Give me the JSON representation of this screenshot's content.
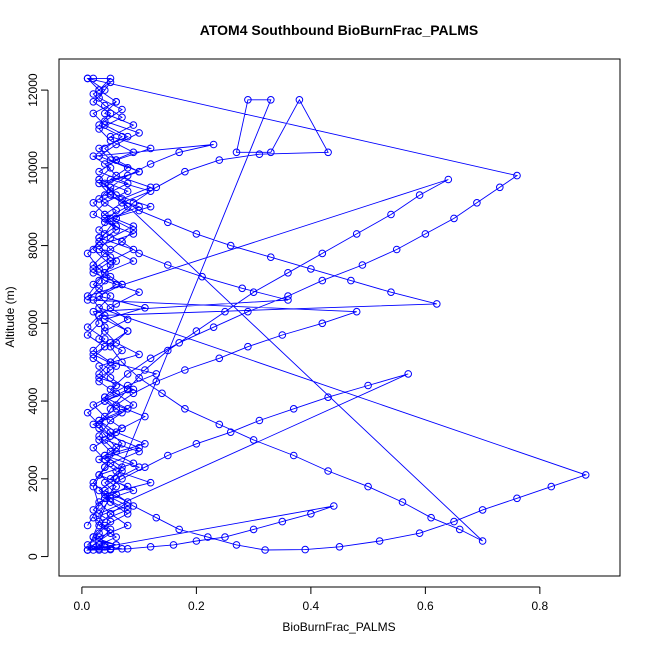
{
  "chart_data": {
    "type": "line",
    "title": "ATOM4 Southbound BioBurnFrac_PALMS",
    "xlabel": "BioBurnFrac_PALMS",
    "ylabel": "Altitude (m)",
    "xlim": [
      -0.04,
      0.94
    ],
    "ylim": [
      -500,
      12800
    ],
    "x_ticks": [
      0.0,
      0.2,
      0.4,
      0.6,
      0.8
    ],
    "x_tick_labels": [
      "0.0",
      "0.2",
      "0.4",
      "0.6",
      "0.8"
    ],
    "y_ticks": [
      0,
      2000,
      4000,
      6000,
      8000,
      10000,
      12000
    ],
    "y_tick_labels": [
      "0",
      "2000",
      "4000",
      "6000",
      "8000",
      "10000",
      "12000"
    ],
    "grid": false,
    "marker": "open-circle",
    "line_style": "solid",
    "series": [
      {
        "color": "#0000ff",
        "x": [
          0.01,
          0.03,
          0.05,
          0.02,
          0.08,
          0.04,
          0.12,
          0.06,
          0.03,
          0.1,
          0.05,
          0.02,
          0.07,
          0.04,
          0.09,
          0.03,
          0.06,
          0.02,
          0.05,
          0.08,
          0.04,
          0.11,
          0.03,
          0.07,
          0.02,
          0.05,
          0.09,
          0.03,
          0.06,
          0.02,
          0.04,
          0.08,
          0.03,
          0.05,
          0.02,
          0.23,
          0.17,
          0.12,
          0.08,
          0.05,
          0.03,
          0.06,
          0.04,
          0.09,
          0.03,
          0.05,
          0.02,
          0.04,
          0.1,
          0.06,
          0.03,
          0.04,
          0.03,
          0.07,
          0.05,
          0.13,
          0.08,
          0.04,
          0.06,
          0.03,
          0.05,
          0.07,
          0.04,
          0.1,
          0.06,
          0.03,
          0.05,
          0.08,
          0.04,
          0.02,
          0.06,
          0.03,
          0.01,
          0.02,
          0.05,
          0.03,
          0.08,
          0.04,
          0.06,
          0.03,
          0.09,
          0.05,
          0.03,
          0.07,
          0.04,
          0.02,
          0.06,
          0.03,
          0.05,
          0.02,
          0.04,
          0.01,
          0.03,
          0.02,
          0.36,
          0.28,
          0.21,
          0.15,
          0.1,
          0.07,
          0.09,
          0.05,
          0.12,
          0.06,
          0.04,
          0.1,
          0.05,
          0.03,
          0.08,
          0.04,
          0.02,
          0.06,
          0.03,
          0.05,
          0.02,
          0.01,
          0.03,
          0.06,
          0.04,
          0.09,
          0.05,
          0.12,
          0.06,
          0.03,
          0.08,
          0.04,
          0.1,
          0.05,
          0.03,
          0.07,
          0.04,
          0.02,
          0.05,
          0.03,
          0.01,
          0.48,
          0.42,
          0.35,
          0.29,
          0.24,
          0.18,
          0.13,
          0.09,
          0.06,
          0.11,
          0.07,
          0.04,
          0.1,
          0.05,
          0.03,
          0.08,
          0.04,
          0.02,
          0.05,
          0.03,
          0.01,
          0.05,
          0.03,
          0.08,
          0.05,
          0.03,
          0.09,
          0.05,
          0.07,
          0.04,
          0.11,
          0.06,
          0.03,
          0.08,
          0.04,
          0.06,
          0.03,
          0.05,
          0.02,
          0.04,
          0.01,
          0.03,
          0.62,
          0.54,
          0.47,
          0.4,
          0.33,
          0.26,
          0.2,
          0.15,
          0.1,
          0.07,
          0.12,
          0.06,
          0.04,
          0.09,
          0.05,
          0.03,
          0.07,
          0.04,
          0.02,
          0.05,
          0.03,
          0.07,
          0.04,
          0.1,
          0.06,
          0.03,
          0.08,
          0.05,
          0.12,
          0.07,
          0.04,
          0.09,
          0.05,
          0.03,
          0.06,
          0.04,
          0.02,
          0.05,
          0.03,
          0.88,
          0.82,
          0.76,
          0.7,
          0.65,
          0.59,
          0.52,
          0.45,
          0.39,
          0.32,
          0.27,
          0.22,
          0.17,
          0.13,
          0.09,
          0.06,
          0.04,
          0.07,
          0.04,
          0.02,
          0.05,
          0.03,
          0.01,
          0.04,
          0.08,
          0.05,
          0.03,
          0.1,
          0.06,
          0.04,
          0.08,
          0.05,
          0.03,
          0.07,
          0.04,
          0.09,
          0.05,
          0.03,
          0.06,
          0.04,
          0.02,
          0.05,
          0.03,
          0.7,
          0.66,
          0.61,
          0.56,
          0.5,
          0.43,
          0.37,
          0.3,
          0.24,
          0.18,
          0.14,
          0.1,
          0.07,
          0.05,
          0.08,
          0.04,
          0.02,
          0.06,
          0.03,
          0.01,
          0.03,
          0.06,
          0.04,
          0.08,
          0.05,
          0.03,
          0.1,
          0.06,
          0.04,
          0.07,
          0.03,
          0.05,
          0.02,
          0.04,
          0.01,
          0.76,
          0.73,
          0.69,
          0.65,
          0.6,
          0.55,
          0.49,
          0.42,
          0.36,
          0.29,
          0.23,
          0.17,
          0.12,
          0.08,
          0.05,
          0.09,
          0.05,
          0.03,
          0.06,
          0.04,
          0.02,
          0.05,
          0.03,
          0.57,
          0.5,
          0.43,
          0.37,
          0.31,
          0.26,
          0.2,
          0.15,
          0.11,
          0.07,
          0.04,
          0.08,
          0.05,
          0.03,
          0.06,
          0.03,
          0.05,
          0.02,
          0.04,
          0.01,
          0.44,
          0.4,
          0.35,
          0.3,
          0.25,
          0.2,
          0.16,
          0.12,
          0.08,
          0.05,
          0.03,
          0.07,
          0.04,
          0.06,
          0.03,
          0.02,
          0.04,
          0.01,
          0.33,
          0.29,
          0.27,
          0.33,
          0.38,
          0.43,
          0.31,
          0.24,
          0.18,
          0.13,
          0.09,
          0.06,
          0.04,
          0.02,
          0.05,
          0.03,
          0.01,
          0.64,
          0.59,
          0.54,
          0.48,
          0.42,
          0.36,
          0.3,
          0.25,
          0.2,
          0.15,
          0.11,
          0.08,
          0.05,
          0.03,
          0.06,
          0.04,
          0.02,
          0.03,
          0.01
        ],
        "y": [
          170,
          400,
          700,
          1000,
          1300,
          1600,
          1900,
          2200,
          2500,
          2800,
          3100,
          3400,
          3700,
          4000,
          4300,
          4600,
          4900,
          5200,
          5500,
          5800,
          6100,
          6400,
          6700,
          7000,
          7300,
          7600,
          7900,
          8200,
          8500,
          8800,
          9100,
          9400,
          9700,
          10000,
          10300,
          10600,
          10400,
          10100,
          9800,
          9500,
          9200,
          8900,
          8600,
          8300,
          8000,
          7700,
          7400,
          7100,
          6800,
          6500,
          6200,
          5900,
          5600,
          5300,
          5000,
          4700,
          4400,
          4100,
          3800,
          3500,
          3200,
          2900,
          2600,
          2300,
          2000,
          1700,
          1400,
          1100,
          800,
          500,
          300,
          200,
          170,
          300,
          600,
          900,
          1200,
          1500,
          1800,
          2100,
          2400,
          2700,
          3000,
          3300,
          3600,
          3900,
          4200,
          4500,
          4800,
          5100,
          5400,
          5700,
          6000,
          6300,
          6600,
          6900,
          7200,
          7500,
          7800,
          8100,
          8400,
          8700,
          9000,
          9300,
          9600,
          9900,
          10200,
          10500,
          10800,
          11100,
          11400,
          11700,
          12000,
          12300,
          12300,
          12300,
          12000,
          11700,
          11400,
          11100,
          10800,
          10500,
          10200,
          9900,
          9600,
          9300,
          9000,
          8700,
          8400,
          8100,
          7800,
          7500,
          7200,
          6900,
          6600,
          6300,
          6000,
          5700,
          5400,
          5100,
          4800,
          4500,
          4200,
          3900,
          3600,
          3300,
          3000,
          2700,
          2400,
          2100,
          1800,
          1500,
          1200,
          900,
          600,
          300,
          200,
          500,
          800,
          1100,
          1400,
          1700,
          2000,
          2300,
          2600,
          2900,
          3200,
          3500,
          3800,
          4100,
          4400,
          4700,
          5000,
          5300,
          5600,
          5900,
          6200,
          6500,
          6800,
          7100,
          7400,
          7700,
          8000,
          8300,
          8600,
          8900,
          9200,
          9500,
          9800,
          10100,
          10400,
          10700,
          11000,
          11300,
          11600,
          11900,
          12200,
          11800,
          11500,
          11200,
          10900,
          10600,
          10300,
          10000,
          9700,
          9400,
          9100,
          8800,
          8500,
          8200,
          7900,
          7600,
          7300,
          7000,
          6700,
          6400,
          2100,
          1800,
          1500,
          1200,
          900,
          600,
          400,
          250,
          180,
          170,
          300,
          500,
          700,
          1000,
          1300,
          1600,
          1900,
          2200,
          2500,
          2800,
          3100,
          3400,
          3700,
          4000,
          4300,
          4600,
          4900,
          5200,
          5500,
          5800,
          6100,
          6400,
          6700,
          7000,
          7300,
          7600,
          7900,
          8200,
          8500,
          8800,
          9100,
          9400,
          9700,
          400,
          700,
          1000,
          1400,
          1800,
          2200,
          2600,
          3000,
          3400,
          3800,
          4200,
          4600,
          5000,
          5400,
          5800,
          6200,
          6600,
          7000,
          7400,
          7800,
          8100,
          8400,
          8700,
          9000,
          9300,
          9600,
          9900,
          10200,
          10500,
          10800,
          11100,
          11400,
          11700,
          12000,
          12300,
          9800,
          9500,
          9100,
          8700,
          8300,
          7900,
          7500,
          7100,
          6700,
          6300,
          5900,
          5500,
          5100,
          4700,
          4300,
          3900,
          3500,
          3100,
          2700,
          2300,
          1900,
          1500,
          1100,
          4700,
          4400,
          4100,
          3800,
          3500,
          3200,
          2900,
          2600,
          2300,
          2000,
          1700,
          1400,
          1100,
          800,
          500,
          300,
          200,
          170,
          170,
          170,
          1300,
          1100,
          900,
          700,
          500,
          400,
          300,
          250,
          200,
          180,
          170,
          200,
          250,
          300,
          400,
          500,
          300,
          170,
          11750,
          11750,
          10400,
          10400,
          11750,
          10400,
          10350,
          10200,
          9900,
          9500,
          9100,
          8700,
          8300,
          7900,
          7500,
          7100,
          6700,
          9700,
          9300,
          8800,
          8300,
          7800,
          7300,
          6800,
          6300,
          5800,
          5300,
          4800,
          4300,
          3800,
          3300,
          2800,
          2300,
          1800,
          1300,
          800
        ]
      }
    ]
  }
}
